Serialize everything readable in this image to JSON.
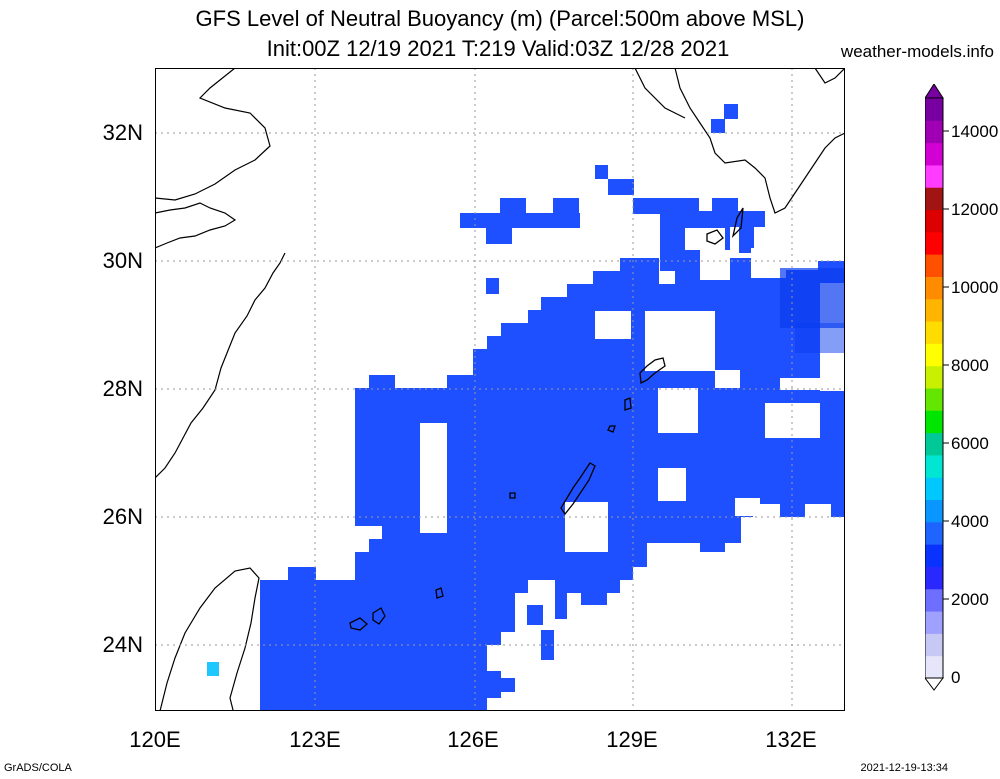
{
  "header": {
    "title_line1": "GFS Level of Neutral Buoyancy (m) (Parcel:500m above MSL)",
    "title_line2": "Init:00Z 12/19 2021 T:219 Valid:03Z 12/28 2021",
    "site": "weather-models.info"
  },
  "axes": {
    "lat_labels": [
      "32N",
      "30N",
      "28N",
      "26N",
      "24N"
    ],
    "lon_labels": [
      "120E",
      "123E",
      "126E",
      "129E",
      "132E"
    ]
  },
  "colorbar": {
    "labels": [
      "14000",
      "12000",
      "10000",
      "8000",
      "6000",
      "4000",
      "2000",
      "0"
    ],
    "colors": [
      "#e6e6fa",
      "#c8c8f5",
      "#a0a0ff",
      "#6e6eff",
      "#2828ff",
      "#0a32ff",
      "#1e64ff",
      "#0a96ff",
      "#00c8ff",
      "#00e6d2",
      "#00c896",
      "#00e600",
      "#64e600",
      "#c8f000",
      "#ffff00",
      "#ffdc00",
      "#ffb400",
      "#ff8c00",
      "#ff5000",
      "#ff0000",
      "#dc0000",
      "#a01414",
      "#ff3cff",
      "#d200d2",
      "#a000b4",
      "#7800a0"
    ]
  },
  "footer": {
    "left": "GrADS/COLA",
    "right": "2021-12-19-13:34"
  }
}
